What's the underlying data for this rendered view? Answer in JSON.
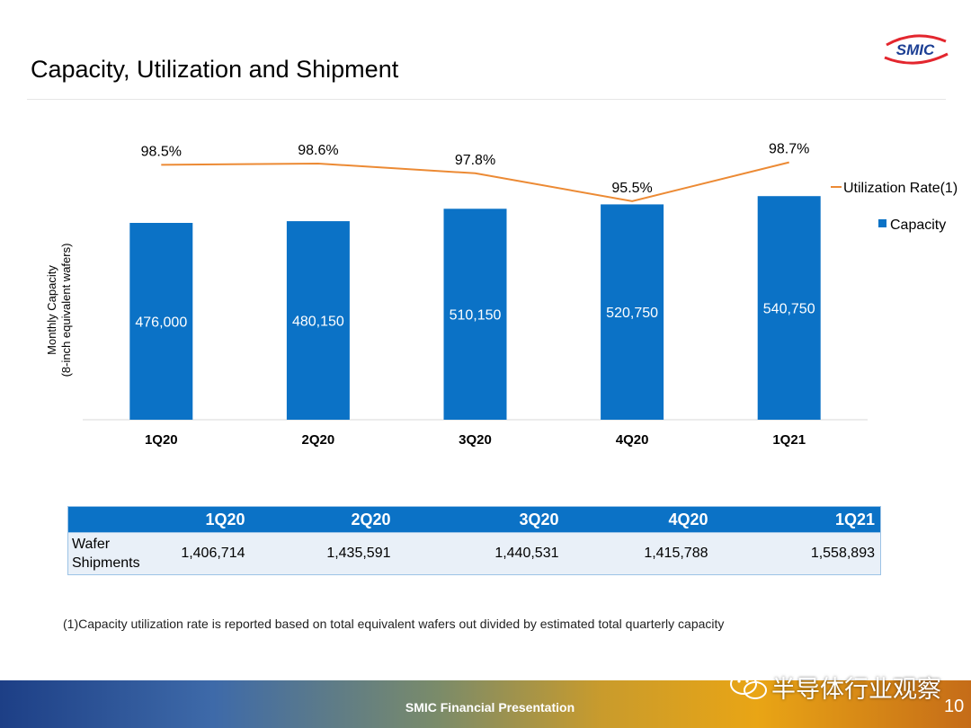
{
  "title": "Capacity, Utilization and Shipment",
  "logo_text": "SMIC",
  "chart_data": {
    "type": "bar",
    "categories": [
      "1Q20",
      "2Q20",
      "3Q20",
      "4Q20",
      "1Q21"
    ],
    "series": [
      {
        "name": "Capacity",
        "type": "bar",
        "values": [
          476000,
          480150,
          510150,
          520750,
          540750
        ],
        "labels": [
          "476,000",
          "480,150",
          "510,150",
          "520,750",
          "540,750"
        ],
        "color": "#0b72c6"
      },
      {
        "name": "Utilization Rate(1)",
        "type": "line",
        "values": [
          98.5,
          98.6,
          97.8,
          95.5,
          98.7
        ],
        "labels": [
          "98.5%",
          "98.6%",
          "97.8%",
          "95.5%",
          "98.7%"
        ],
        "color": "#ec8a34"
      }
    ],
    "ylabel_lines": [
      "Monthly Capacity",
      "(8-inch equivalent wafers)"
    ],
    "legend": [
      "Utilization Rate(1)",
      "Capacity"
    ],
    "legend_position": "right",
    "ylim": [
      0,
      600000
    ],
    "util_ylim": [
      90,
      100
    ],
    "grid": false
  },
  "table": {
    "headers": [
      "",
      "1Q20",
      "2Q20",
      "3Q20",
      "4Q20",
      "1Q21"
    ],
    "row_label": "Wafer Shipments",
    "values": [
      "1,406,714",
      "1,435,591",
      "1,440,531",
      "1,415,788",
      "1,558,893"
    ]
  },
  "footnote": "(1)Capacity utilization rate is reported based on total equivalent wafers out divided by estimated total quarterly capacity",
  "footer": "SMIC Financial Presentation",
  "page_number": "10",
  "watermark": "半导体行业观察"
}
